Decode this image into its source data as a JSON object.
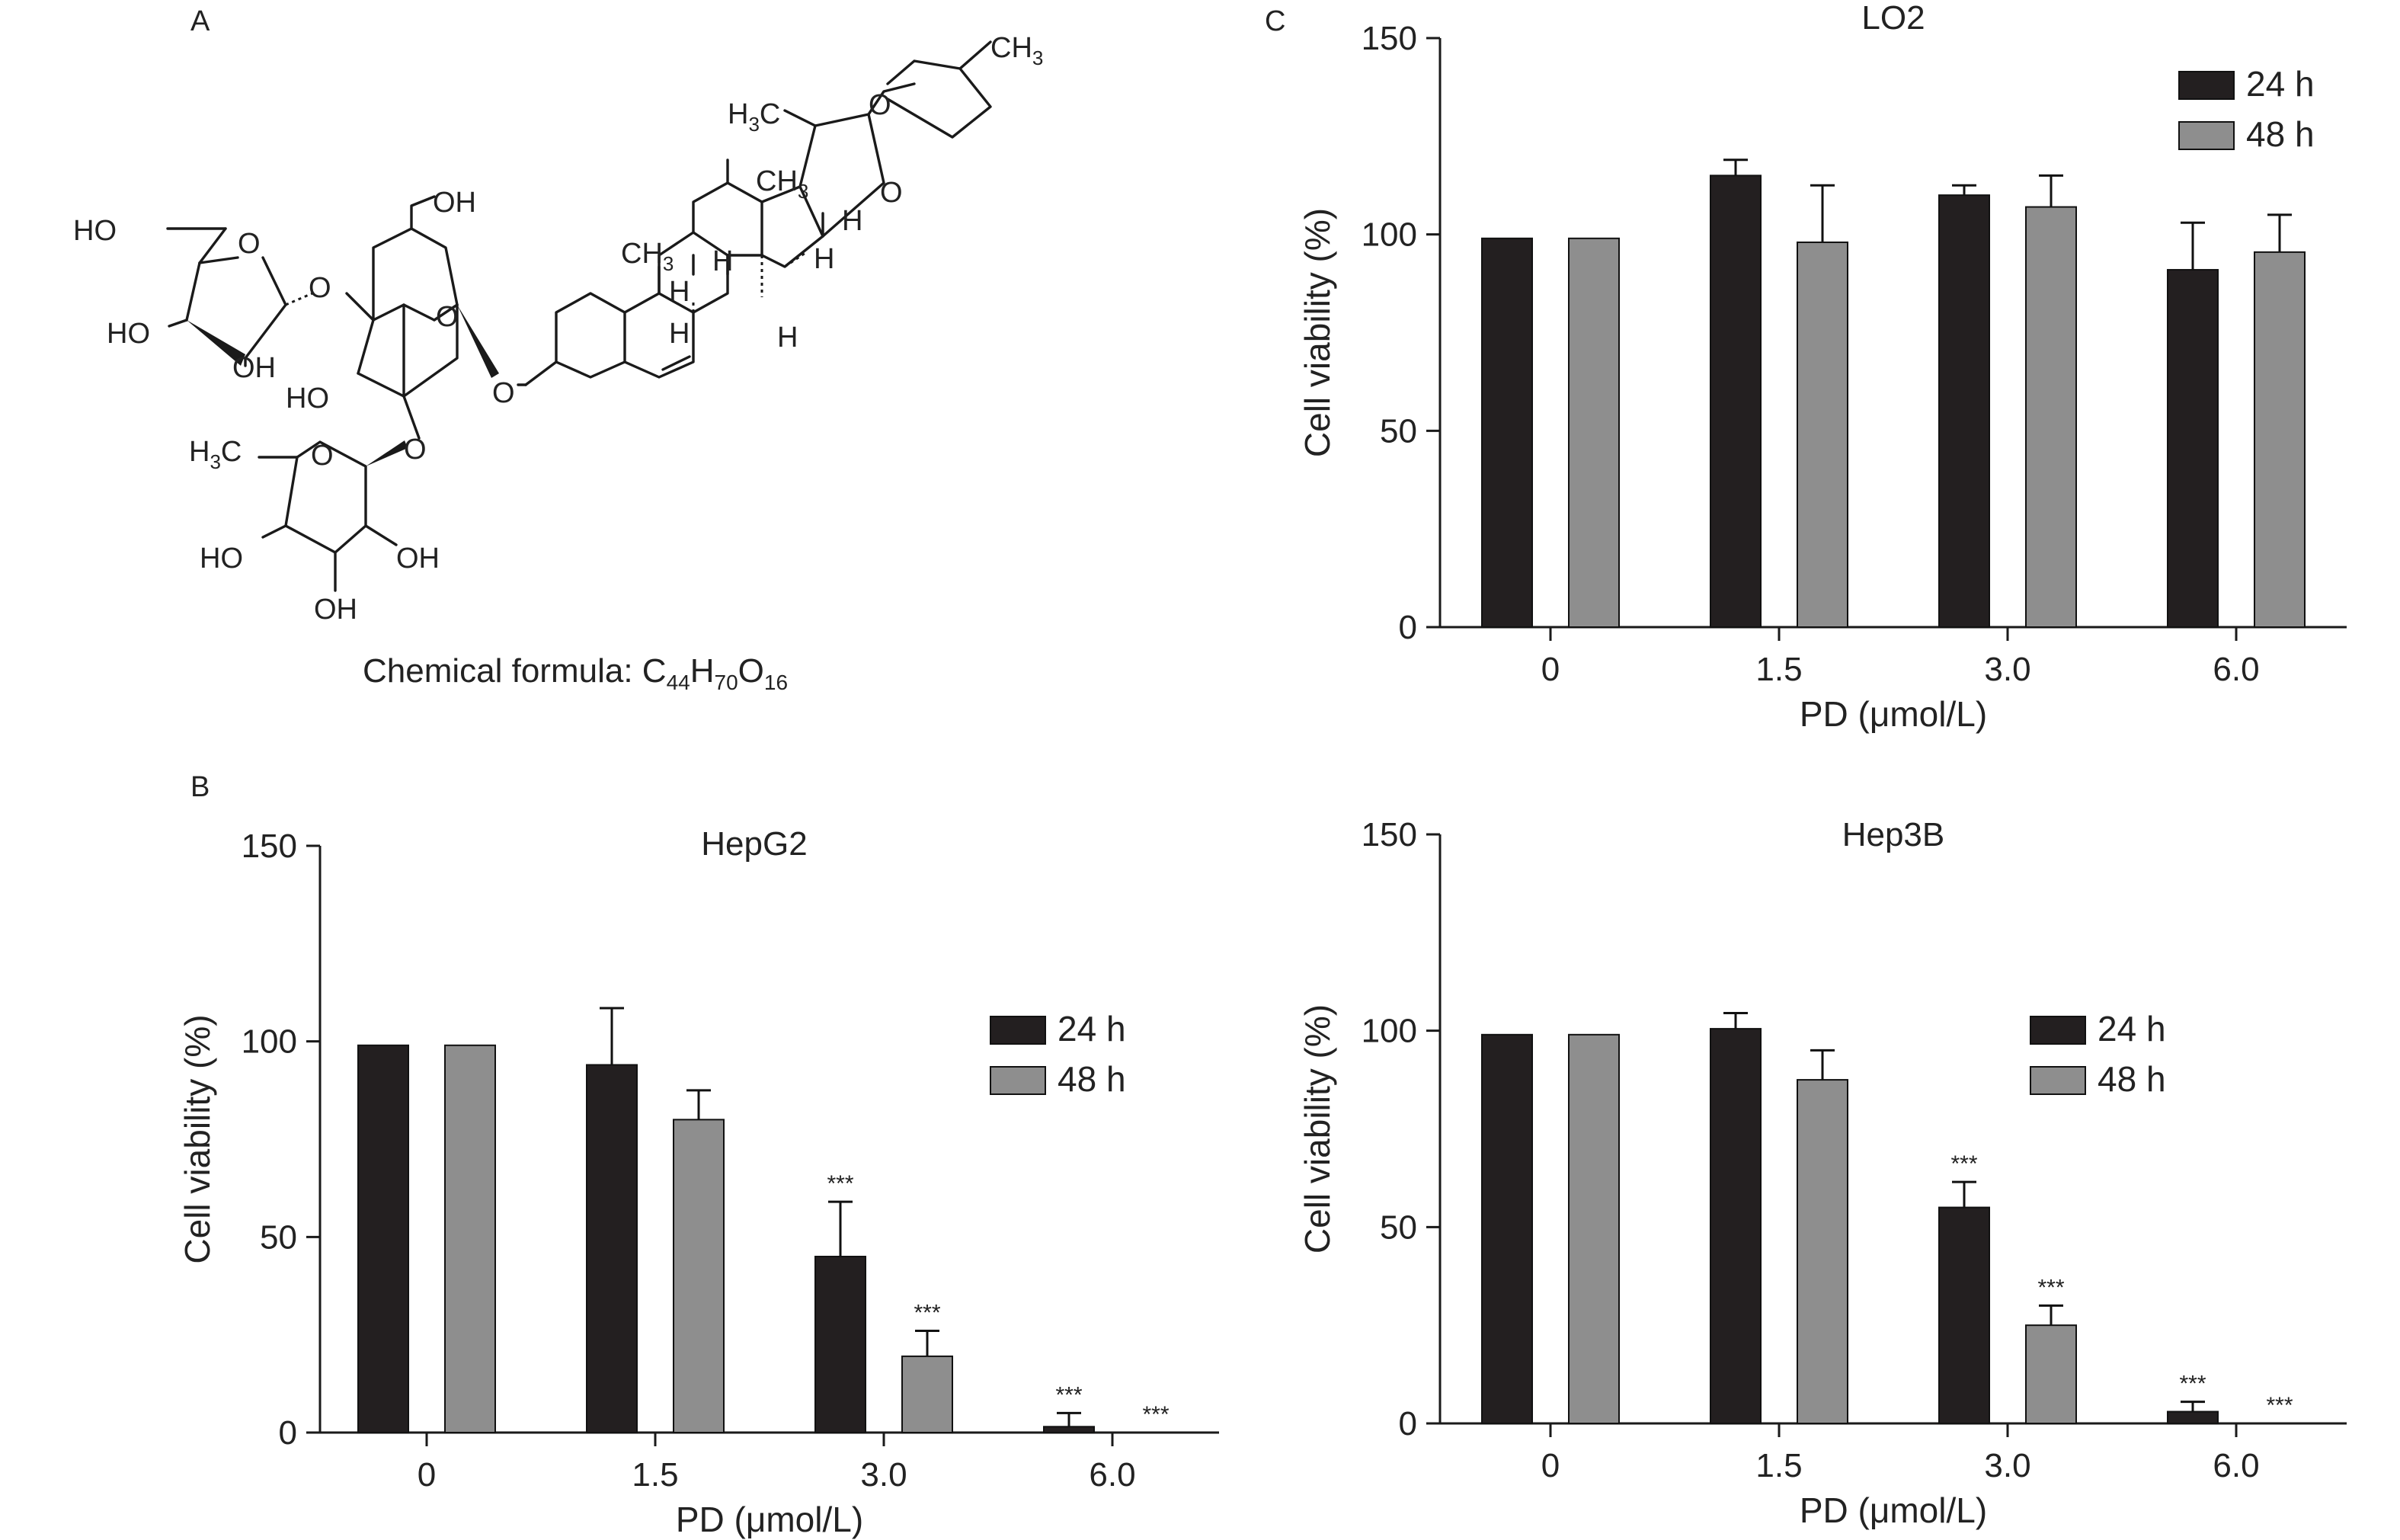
{
  "panels": {
    "A": {
      "letter": "A",
      "formula_prefix": "Chemical formula: ",
      "formula": "C44H70O16"
    },
    "B": {
      "letter": "B"
    },
    "C": {
      "letter": "C"
    }
  },
  "chemical_labels": {
    "ho_top": "HO",
    "o_ring1": "O",
    "ho_left": "HO",
    "oh_ring1": "OH",
    "o_link1": "O",
    "oh_ch2": "OH",
    "o_ring2": "O",
    "ho_ring2": "HO",
    "o_link2": "O",
    "o_glyc": "O",
    "h3c_rha": "H",
    "h3c_rha_sub": "3",
    "h3c_rha_c": "C",
    "o_ring3": "O",
    "ho_rha": "HO",
    "oh_rha_r": "OH",
    "oh_rha_b": "OH",
    "ch3_19": "CH",
    "ch3_19_sub": "3",
    "ch3_18": "CH",
    "ch3_18_sub": "3",
    "h3c_21": "H",
    "h3c_21_sub": "3",
    "h3c_21_c": "C",
    "ch3_27": "CH",
    "ch3_27_sub": "3",
    "o_spiro_f": "O",
    "o_spiro_e": "O",
    "h_9": "H",
    "h_8": "H",
    "h_14": "H",
    "h_17": "H",
    "h_16": "H",
    "h_10b": "H"
  },
  "chart_data": [
    {
      "type": "bar",
      "title": "HepG2",
      "categories": [
        "0",
        "1.5",
        "3.0",
        "6.0"
      ],
      "series": [
        {
          "name": "24 h",
          "color": "#231f20",
          "values": [
            99,
            94,
            45,
            1.5
          ],
          "errors": [
            0,
            14.5,
            14,
            3.5
          ],
          "marks": [
            "",
            "",
            "***",
            "***"
          ]
        },
        {
          "name": "48 h",
          "color": "#8e8e8e",
          "values": [
            99,
            80,
            19.5,
            0
          ],
          "errors": [
            0,
            7.5,
            6.5,
            0
          ],
          "marks": [
            "",
            "",
            "***",
            "***"
          ]
        }
      ],
      "xlabel": "PD (μmol/L)",
      "ylabel": "Cell viability (%)",
      "ylim": [
        0,
        150
      ],
      "yticks": [
        0,
        50,
        100,
        150
      ],
      "legend": "right-middle"
    },
    {
      "type": "bar",
      "title": "LO2",
      "categories": [
        "0",
        "1.5",
        "3.0",
        "6.0"
      ],
      "series": [
        {
          "name": "24 h",
          "color": "#231f20",
          "values": [
            99,
            115,
            110,
            91
          ],
          "errors": [
            0,
            4,
            2.5,
            12
          ],
          "marks": [
            "",
            "",
            "",
            ""
          ]
        },
        {
          "name": "48 h",
          "color": "#8e8e8e",
          "values": [
            99,
            98,
            107,
            95.5
          ],
          "errors": [
            0,
            14.5,
            8,
            9.5
          ],
          "marks": [
            "",
            "",
            "",
            ""
          ]
        }
      ],
      "xlabel": "PD (μmol/L)",
      "ylabel": "Cell viability (%)",
      "ylim": [
        0,
        150
      ],
      "yticks": [
        0,
        50,
        100,
        150
      ],
      "legend": "top-right"
    },
    {
      "type": "bar",
      "title": "Hep3B",
      "categories": [
        "0",
        "1.5",
        "3.0",
        "6.0"
      ],
      "series": [
        {
          "name": "24 h",
          "color": "#231f20",
          "values": [
            99,
            100.5,
            55,
            3
          ],
          "errors": [
            0,
            4,
            6.5,
            2.5
          ],
          "marks": [
            "",
            "",
            "***",
            "***"
          ]
        },
        {
          "name": "48 h",
          "color": "#8e8e8e",
          "values": [
            99,
            87.5,
            25,
            0
          ],
          "errors": [
            0,
            7.5,
            5,
            0
          ],
          "marks": [
            "",
            "",
            "***",
            "***"
          ]
        }
      ],
      "xlabel": "PD (μmol/L)",
      "ylabel": "Cell viability (%)",
      "ylim": [
        0,
        150
      ],
      "yticks": [
        0,
        50,
        100,
        150
      ],
      "legend": "right-middle"
    }
  ]
}
